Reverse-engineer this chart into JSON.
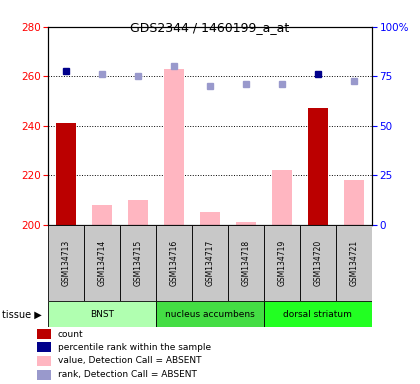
{
  "title": "GDS2344 / 1460199_a_at",
  "samples": [
    "GSM134713",
    "GSM134714",
    "GSM134715",
    "GSM134716",
    "GSM134717",
    "GSM134718",
    "GSM134719",
    "GSM134720",
    "GSM134721"
  ],
  "count_values": [
    241,
    null,
    null,
    null,
    null,
    null,
    null,
    247,
    null
  ],
  "absent_values": [
    null,
    208,
    210,
    263,
    205,
    201,
    222,
    null,
    218
  ],
  "rank_present": [
    262,
    null,
    null,
    null,
    null,
    null,
    null,
    261,
    null
  ],
  "rank_absent": [
    null,
    261,
    260,
    264,
    256,
    257,
    257,
    null,
    258
  ],
  "ylim_left": [
    200,
    280
  ],
  "ylim_right": [
    0,
    100
  ],
  "yticks_left": [
    200,
    220,
    240,
    260,
    280
  ],
  "yticks_right": [
    0,
    25,
    50,
    75,
    100
  ],
  "ytick_labels_right": [
    "0",
    "25",
    "50",
    "75",
    "100%"
  ],
  "bar_color_present": "#BB0000",
  "bar_color_absent": "#FFB6C1",
  "dot_color_present": "#00008B",
  "dot_color_absent": "#9999CC",
  "sample_box_color": "#C8C8C8",
  "tissue_colors": [
    "#B0FFB0",
    "#44DD44",
    "#22FF22"
  ],
  "tissue_labels": [
    "BNST",
    "nucleus accumbens",
    "dorsal striatum"
  ],
  "tissue_ranges": [
    [
      0,
      3
    ],
    [
      3,
      6
    ],
    [
      6,
      9
    ]
  ],
  "legend_items": [
    {
      "color": "#BB0000",
      "label": "count"
    },
    {
      "color": "#00008B",
      "label": "percentile rank within the sample"
    },
    {
      "color": "#FFB6C1",
      "label": "value, Detection Call = ABSENT"
    },
    {
      "color": "#9999CC",
      "label": "rank, Detection Call = ABSENT"
    }
  ]
}
